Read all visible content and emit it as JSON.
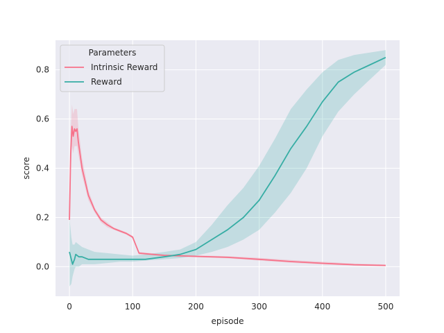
{
  "chart_data": {
    "type": "line",
    "title": "",
    "xlabel": "episode",
    "ylabel": "score",
    "xlim": [
      -22,
      522
    ],
    "ylim": [
      -0.12,
      0.92
    ],
    "xticks": [
      0,
      100,
      200,
      300,
      400,
      500
    ],
    "yticks": [
      0.0,
      0.2,
      0.4,
      0.6,
      0.8
    ],
    "grid": true,
    "background": "#eaeaf2",
    "legend": {
      "title": "Parameters",
      "position": "top-left",
      "entries": [
        "Intrinsic Reward",
        "Reward"
      ]
    },
    "series": [
      {
        "name": "Intrinsic Reward",
        "color": "#f77189",
        "x": [
          0,
          2,
          4,
          6,
          8,
          10,
          12,
          14,
          20,
          30,
          40,
          50,
          60,
          70,
          80,
          90,
          100,
          110,
          150,
          200,
          250,
          300,
          350,
          400,
          450,
          500
        ],
        "y": [
          0.19,
          0.46,
          0.57,
          0.53,
          0.56,
          0.55,
          0.56,
          0.51,
          0.4,
          0.29,
          0.23,
          0.19,
          0.17,
          0.155,
          0.145,
          0.135,
          0.12,
          0.055,
          0.046,
          0.042,
          0.038,
          0.03,
          0.021,
          0.014,
          0.008,
          0.005
        ],
        "lower": [
          0.16,
          0.38,
          0.49,
          0.46,
          0.49,
          0.49,
          0.49,
          0.46,
          0.37,
          0.27,
          0.22,
          0.18,
          0.16,
          0.15,
          0.14,
          0.13,
          0.115,
          0.05,
          0.042,
          0.038,
          0.034,
          0.025,
          0.016,
          0.009,
          0.004,
          0.002
        ],
        "upper": [
          0.22,
          0.55,
          0.66,
          0.62,
          0.64,
          0.64,
          0.64,
          0.57,
          0.44,
          0.31,
          0.24,
          0.2,
          0.18,
          0.16,
          0.15,
          0.14,
          0.125,
          0.06,
          0.05,
          0.046,
          0.043,
          0.036,
          0.027,
          0.02,
          0.013,
          0.009
        ]
      },
      {
        "name": "Reward",
        "color": "#36ada4",
        "x": [
          0,
          3,
          5,
          8,
          10,
          15,
          20,
          30,
          40,
          60,
          80,
          100,
          120,
          150,
          175,
          200,
          225,
          250,
          275,
          300,
          325,
          350,
          375,
          400,
          425,
          450,
          475,
          500
        ],
        "y": [
          0.06,
          0.03,
          0.01,
          0.03,
          0.05,
          0.04,
          0.04,
          0.03,
          0.03,
          0.03,
          0.03,
          0.03,
          0.03,
          0.04,
          0.05,
          0.07,
          0.11,
          0.15,
          0.2,
          0.27,
          0.37,
          0.48,
          0.57,
          0.67,
          0.75,
          0.79,
          0.82,
          0.85
        ],
        "lower": [
          -0.08,
          -0.07,
          -0.04,
          -0.01,
          0.0,
          0.0,
          0.01,
          0.01,
          0.01,
          0.015,
          0.02,
          0.02,
          0.025,
          0.03,
          0.035,
          0.045,
          0.06,
          0.08,
          0.11,
          0.15,
          0.22,
          0.3,
          0.4,
          0.53,
          0.63,
          0.7,
          0.76,
          0.82
        ],
        "upper": [
          0.2,
          0.12,
          0.09,
          0.09,
          0.1,
          0.09,
          0.08,
          0.07,
          0.06,
          0.055,
          0.05,
          0.045,
          0.05,
          0.06,
          0.07,
          0.1,
          0.17,
          0.25,
          0.32,
          0.41,
          0.52,
          0.64,
          0.72,
          0.79,
          0.84,
          0.86,
          0.87,
          0.88
        ]
      }
    ]
  }
}
